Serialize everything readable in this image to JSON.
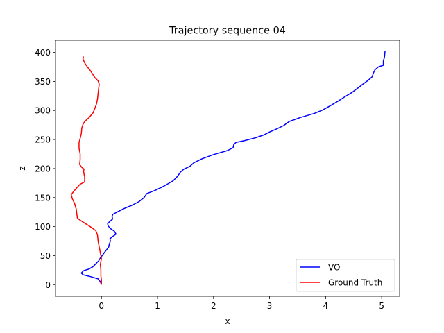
{
  "chart_data": {
    "type": "line",
    "title": "Trajectory sequence 04",
    "xlabel": "x",
    "ylabel": "z",
    "xlim": [
      -0.82,
      5.32
    ],
    "ylim": [
      -20,
      421
    ],
    "xticks": [
      0,
      1,
      2,
      3,
      4,
      5
    ],
    "yticks": [
      0,
      50,
      100,
      150,
      200,
      250,
      300,
      350,
      400
    ],
    "grid": false,
    "legend": "lower right",
    "series": [
      {
        "name": "VO",
        "color": "#0000ff",
        "points": [
          [
            0.0,
            0
          ],
          [
            -0.02,
            5
          ],
          [
            -0.06,
            10
          ],
          [
            -0.2,
            14
          ],
          [
            -0.33,
            17
          ],
          [
            -0.36,
            20
          ],
          [
            -0.32,
            24
          ],
          [
            -0.22,
            27
          ],
          [
            -0.15,
            31
          ],
          [
            -0.1,
            36
          ],
          [
            -0.05,
            41
          ],
          [
            -0.02,
            46
          ],
          [
            0.02,
            51
          ],
          [
            0.05,
            55
          ],
          [
            0.09,
            60
          ],
          [
            0.13,
            65
          ],
          [
            0.14,
            70
          ],
          [
            0.16,
            75
          ],
          [
            0.15,
            79
          ],
          [
            0.2,
            83
          ],
          [
            0.26,
            87
          ],
          [
            0.23,
            92
          ],
          [
            0.17,
            96
          ],
          [
            0.12,
            101
          ],
          [
            0.11,
            105
          ],
          [
            0.15,
            109
          ],
          [
            0.2,
            113
          ],
          [
            0.19,
            117
          ],
          [
            0.2,
            121
          ],
          [
            0.3,
            126
          ],
          [
            0.4,
            131
          ],
          [
            0.55,
            137
          ],
          [
            0.67,
            143
          ],
          [
            0.76,
            150
          ],
          [
            0.81,
            157
          ],
          [
            0.95,
            162
          ],
          [
            1.12,
            170
          ],
          [
            1.28,
            179
          ],
          [
            1.36,
            187
          ],
          [
            1.41,
            194
          ],
          [
            1.47,
            199
          ],
          [
            1.58,
            204
          ],
          [
            1.65,
            210
          ],
          [
            1.8,
            217
          ],
          [
            2.0,
            224
          ],
          [
            2.25,
            231
          ],
          [
            2.35,
            236
          ],
          [
            2.36,
            241
          ],
          [
            2.4,
            245
          ],
          [
            2.55,
            248
          ],
          [
            2.75,
            253
          ],
          [
            2.9,
            258
          ],
          [
            3.0,
            263
          ],
          [
            3.12,
            268
          ],
          [
            3.25,
            274
          ],
          [
            3.35,
            281
          ],
          [
            3.55,
            288
          ],
          [
            3.8,
            295
          ],
          [
            3.95,
            301
          ],
          [
            4.08,
            308
          ],
          [
            4.22,
            316
          ],
          [
            4.35,
            324
          ],
          [
            4.47,
            331
          ],
          [
            4.58,
            339
          ],
          [
            4.66,
            345
          ],
          [
            4.76,
            352
          ],
          [
            4.83,
            358
          ],
          [
            4.85,
            364
          ],
          [
            4.88,
            370
          ],
          [
            4.94,
            375
          ],
          [
            5.03,
            378
          ],
          [
            5.03,
            385
          ],
          [
            5.05,
            392
          ],
          [
            5.06,
            402
          ]
        ]
      },
      {
        "name": "Ground Truth",
        "color": "#ff0000",
        "points": [
          [
            0.0,
            0
          ],
          [
            0.0,
            8
          ],
          [
            -0.01,
            15
          ],
          [
            -0.01,
            25
          ],
          [
            -0.02,
            35
          ],
          [
            0.0,
            45
          ],
          [
            -0.02,
            55
          ],
          [
            -0.04,
            65
          ],
          [
            -0.06,
            75
          ],
          [
            -0.07,
            85
          ],
          [
            -0.1,
            93
          ],
          [
            -0.2,
            100
          ],
          [
            -0.3,
            106
          ],
          [
            -0.38,
            111
          ],
          [
            -0.43,
            115
          ],
          [
            -0.44,
            122
          ],
          [
            -0.45,
            130
          ],
          [
            -0.48,
            140
          ],
          [
            -0.52,
            148
          ],
          [
            -0.54,
            155
          ],
          [
            -0.5,
            160
          ],
          [
            -0.44,
            167
          ],
          [
            -0.38,
            173
          ],
          [
            -0.3,
            177
          ],
          [
            -0.3,
            181
          ],
          [
            -0.3,
            186
          ],
          [
            -0.31,
            190
          ],
          [
            -0.32,
            196
          ],
          [
            -0.31,
            199
          ],
          [
            -0.35,
            202
          ],
          [
            -0.39,
            207
          ],
          [
            -0.38,
            215
          ],
          [
            -0.38,
            225
          ],
          [
            -0.4,
            235
          ],
          [
            -0.4,
            245
          ],
          [
            -0.38,
            252
          ],
          [
            -0.36,
            260
          ],
          [
            -0.35,
            270
          ],
          [
            -0.33,
            276
          ],
          [
            -0.3,
            281
          ],
          [
            -0.22,
            288
          ],
          [
            -0.15,
            296
          ],
          [
            -0.12,
            303
          ],
          [
            -0.09,
            311
          ],
          [
            -0.07,
            320
          ],
          [
            -0.06,
            329
          ],
          [
            -0.05,
            338
          ],
          [
            -0.04,
            345
          ],
          [
            -0.06,
            351
          ],
          [
            -0.12,
            357
          ],
          [
            -0.16,
            363
          ],
          [
            -0.2,
            369
          ],
          [
            -0.25,
            375
          ],
          [
            -0.3,
            382
          ],
          [
            -0.33,
            389
          ],
          [
            -0.32,
            393
          ]
        ]
      }
    ]
  }
}
